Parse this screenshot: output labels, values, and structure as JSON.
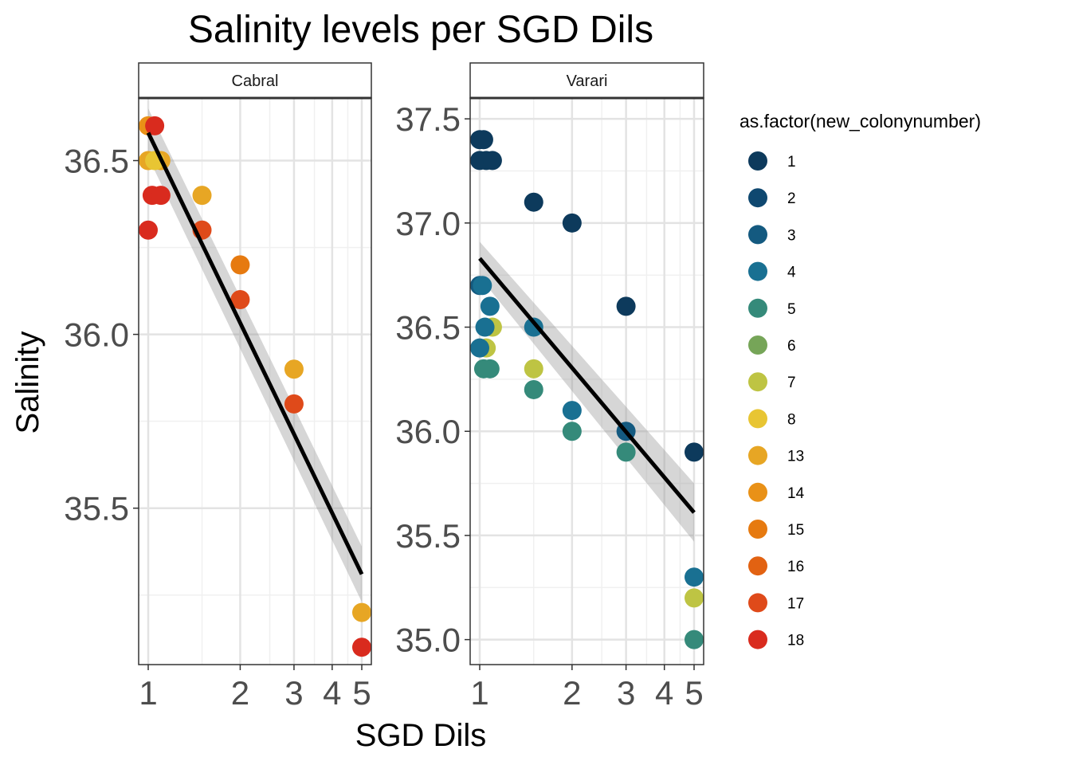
{
  "chart_data": {
    "type": "scatter",
    "title": "Salinity levels per SGD Dils",
    "xlabel": "SGD Dils",
    "ylabel": "Salinity",
    "x_scale": "log",
    "x_ticks": [
      1,
      2,
      3,
      4,
      5
    ],
    "x_tick_labels": [
      "1",
      "2",
      "3",
      "4",
      "5"
    ],
    "grid": true,
    "legend": {
      "title": "as.factor(new_colonynumber)",
      "placement": "right",
      "entries": [
        {
          "label": "1",
          "color": "#0D3A5C"
        },
        {
          "label": "2",
          "color": "#0F4870"
        },
        {
          "label": "3",
          "color": "#145A80"
        },
        {
          "label": "4",
          "color": "#197092"
        },
        {
          "label": "5",
          "color": "#358A7A"
        },
        {
          "label": "6",
          "color": "#76A558"
        },
        {
          "label": "7",
          "color": "#BEC443"
        },
        {
          "label": "8",
          "color": "#E8C533"
        },
        {
          "label": "13",
          "color": "#E7A624"
        },
        {
          "label": "14",
          "color": "#E99117"
        },
        {
          "label": "15",
          "color": "#E67A10"
        },
        {
          "label": "16",
          "color": "#E26212"
        },
        {
          "label": "17",
          "color": "#DF4A1A"
        },
        {
          "label": "18",
          "color": "#D92B1E"
        }
      ]
    },
    "panels": [
      {
        "name": "Cabral",
        "ylim": [
          35.05,
          36.68
        ],
        "y_ticks": [
          35.5,
          36.0,
          36.5
        ],
        "y_tick_labels": [
          "35.5",
          "36.0",
          "36.5"
        ],
        "trend": {
          "x": [
            1,
            5
          ],
          "y": [
            36.58,
            35.31
          ],
          "ci_low": [
            36.51,
            35.23
          ],
          "ci_high": [
            36.65,
            35.39
          ]
        },
        "points": [
          {
            "x": 1.0,
            "y": 36.6,
            "group": "14"
          },
          {
            "x": 1.05,
            "y": 36.6,
            "group": "18"
          },
          {
            "x": 1.0,
            "y": 36.5,
            "group": "13"
          },
          {
            "x": 1.1,
            "y": 36.5,
            "group": "13"
          },
          {
            "x": 1.05,
            "y": 36.5,
            "group": "8"
          },
          {
            "x": 1.03,
            "y": 36.4,
            "group": "18"
          },
          {
            "x": 1.1,
            "y": 36.4,
            "group": "18"
          },
          {
            "x": 1.0,
            "y": 36.3,
            "group": "18"
          },
          {
            "x": 1.5,
            "y": 36.4,
            "group": "13"
          },
          {
            "x": 1.5,
            "y": 36.3,
            "group": "17"
          },
          {
            "x": 2.0,
            "y": 36.2,
            "group": "15"
          },
          {
            "x": 2.0,
            "y": 36.1,
            "group": "17"
          },
          {
            "x": 3.0,
            "y": 35.9,
            "group": "13"
          },
          {
            "x": 3.0,
            "y": 35.8,
            "group": "17"
          },
          {
            "x": 5.0,
            "y": 35.2,
            "group": "13"
          },
          {
            "x": 5.0,
            "y": 35.1,
            "group": "18"
          }
        ]
      },
      {
        "name": "Varari",
        "ylim": [
          34.88,
          37.6
        ],
        "y_ticks": [
          35.0,
          35.5,
          36.0,
          36.5,
          37.0,
          37.5
        ],
        "y_tick_labels": [
          "35.0",
          "35.5",
          "36.0",
          "36.5",
          "37.0",
          "37.5"
        ],
        "trend": {
          "x": [
            1,
            5
          ],
          "y": [
            36.83,
            35.61
          ],
          "ci_low": [
            36.74,
            35.47
          ],
          "ci_high": [
            36.91,
            35.75
          ]
        },
        "points": [
          {
            "x": 1.0,
            "y": 37.4,
            "group": "1"
          },
          {
            "x": 1.03,
            "y": 37.4,
            "group": "1"
          },
          {
            "x": 1.0,
            "y": 37.3,
            "group": "1"
          },
          {
            "x": 1.05,
            "y": 37.3,
            "group": "1"
          },
          {
            "x": 1.1,
            "y": 37.3,
            "group": "1"
          },
          {
            "x": 1.5,
            "y": 37.1,
            "group": "1"
          },
          {
            "x": 2.0,
            "y": 37.0,
            "group": "1"
          },
          {
            "x": 3.0,
            "y": 36.6,
            "group": "1"
          },
          {
            "x": 1.0,
            "y": 36.7,
            "group": "3"
          },
          {
            "x": 1.02,
            "y": 36.7,
            "group": "4"
          },
          {
            "x": 1.08,
            "y": 36.6,
            "group": "4"
          },
          {
            "x": 1.1,
            "y": 36.5,
            "group": "7"
          },
          {
            "x": 1.04,
            "y": 36.5,
            "group": "4"
          },
          {
            "x": 1.05,
            "y": 36.4,
            "group": "7"
          },
          {
            "x": 1.0,
            "y": 36.4,
            "group": "4"
          },
          {
            "x": 1.03,
            "y": 36.3,
            "group": "5"
          },
          {
            "x": 1.08,
            "y": 36.3,
            "group": "5"
          },
          {
            "x": 1.5,
            "y": 36.5,
            "group": "4"
          },
          {
            "x": 1.5,
            "y": 36.3,
            "group": "7"
          },
          {
            "x": 1.5,
            "y": 36.2,
            "group": "5"
          },
          {
            "x": 2.0,
            "y": 36.1,
            "group": "4"
          },
          {
            "x": 2.0,
            "y": 36.0,
            "group": "5"
          },
          {
            "x": 3.0,
            "y": 36.0,
            "group": "3"
          },
          {
            "x": 3.0,
            "y": 35.9,
            "group": "5"
          },
          {
            "x": 5.0,
            "y": 35.9,
            "group": "1"
          },
          {
            "x": 5.0,
            "y": 35.3,
            "group": "4"
          },
          {
            "x": 5.0,
            "y": 35.2,
            "group": "7"
          },
          {
            "x": 5.0,
            "y": 35.0,
            "group": "5"
          }
        ]
      }
    ]
  }
}
